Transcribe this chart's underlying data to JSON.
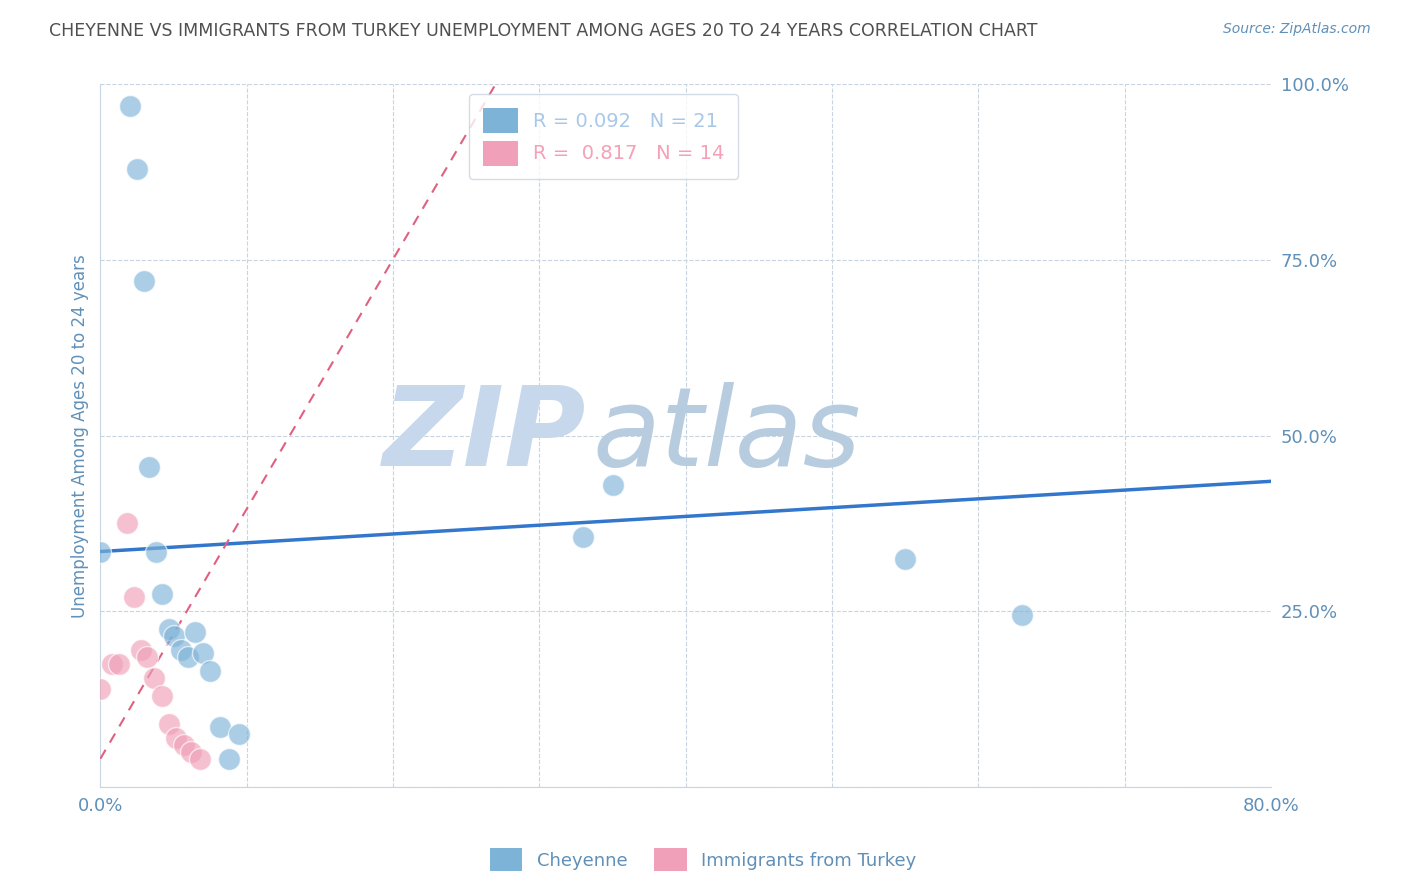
{
  "title": "CHEYENNE VS IMMIGRANTS FROM TURKEY UNEMPLOYMENT AMONG AGES 20 TO 24 YEARS CORRELATION CHART",
  "source": "Source: ZipAtlas.com",
  "ylabel": "Unemployment Among Ages 20 to 24 years",
  "xlim": [
    0.0,
    0.8
  ],
  "ylim": [
    0.0,
    1.0
  ],
  "xticks": [
    0.0,
    0.1,
    0.2,
    0.3,
    0.4,
    0.5,
    0.6,
    0.7,
    0.8
  ],
  "xticklabels": [
    "0.0%",
    "",
    "",
    "",
    "",
    "",
    "",
    "",
    "80.0%"
  ],
  "yticks": [
    0.0,
    0.25,
    0.5,
    0.75,
    1.0
  ],
  "yticklabels": [
    "",
    "25.0%",
    "50.0%",
    "75.0%",
    "100.0%"
  ],
  "legend_entries": [
    {
      "label": "R = 0.092   N = 21",
      "color": "#a8c8e8"
    },
    {
      "label": "R =  0.817   N = 14",
      "color": "#f4a0b8"
    }
  ],
  "watermark_zip": "ZIP",
  "watermark_atlas": "atlas",
  "cheyenne_scatter": [
    [
      0.0,
      0.335
    ],
    [
      0.02,
      0.97
    ],
    [
      0.025,
      0.88
    ],
    [
      0.03,
      0.72
    ],
    [
      0.033,
      0.455
    ],
    [
      0.038,
      0.335
    ],
    [
      0.042,
      0.275
    ],
    [
      0.047,
      0.225
    ],
    [
      0.05,
      0.215
    ],
    [
      0.055,
      0.195
    ],
    [
      0.06,
      0.185
    ],
    [
      0.065,
      0.22
    ],
    [
      0.07,
      0.19
    ],
    [
      0.075,
      0.165
    ],
    [
      0.082,
      0.085
    ],
    [
      0.088,
      0.04
    ],
    [
      0.095,
      0.075
    ],
    [
      0.33,
      0.355
    ],
    [
      0.35,
      0.43
    ],
    [
      0.55,
      0.325
    ],
    [
      0.63,
      0.245
    ]
  ],
  "turkey_scatter": [
    [
      0.0,
      0.14
    ],
    [
      0.008,
      0.175
    ],
    [
      0.013,
      0.175
    ],
    [
      0.018,
      0.375
    ],
    [
      0.023,
      0.27
    ],
    [
      0.028,
      0.195
    ],
    [
      0.032,
      0.185
    ],
    [
      0.037,
      0.155
    ],
    [
      0.042,
      0.13
    ],
    [
      0.047,
      0.09
    ],
    [
      0.052,
      0.07
    ],
    [
      0.057,
      0.06
    ],
    [
      0.062,
      0.05
    ],
    [
      0.068,
      0.04
    ]
  ],
  "cheyenne_color": "#7eb3d8",
  "turkey_color": "#f0a0b8",
  "cheyenne_line_color": "#3377cc",
  "turkey_line_color": "#e06080",
  "bg_color": "#ffffff",
  "grid_color": "#c8d4e0",
  "title_color": "#505050",
  "axis_color": "#6090b8",
  "watermark_color_zip": "#c8d8ec",
  "watermark_color_atlas": "#b8cce0"
}
